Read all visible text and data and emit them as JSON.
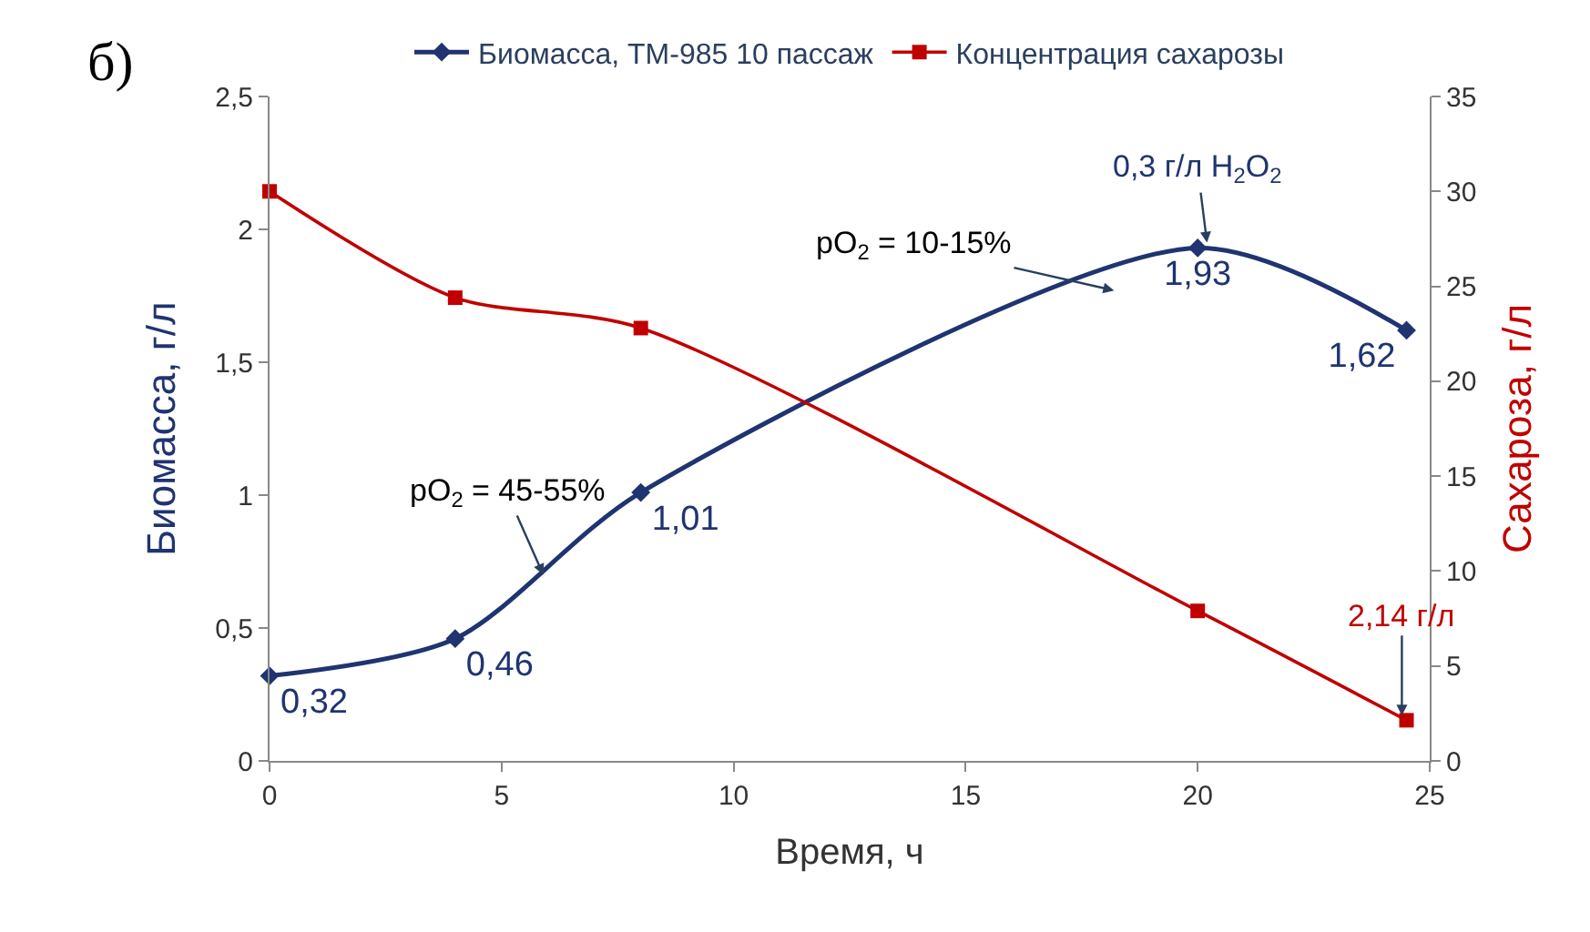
{
  "chart_data": {
    "type": "line",
    "title": "б)",
    "xlabel": "Время, ч",
    "ylabel": "Биомасса, г/л",
    "y2label": "Сахароза, г/л",
    "xlim": [
      0,
      25
    ],
    "xticks": [
      0,
      5,
      10,
      15,
      20,
      25
    ],
    "ylim": [
      0,
      2.5
    ],
    "yticks": [
      0,
      {
        "value": 0.5,
        "label": "0,5"
      },
      1,
      {
        "value": 1.5,
        "label": "1,5"
      },
      2,
      {
        "value": 2.5,
        "label": "2,5"
      }
    ],
    "y2lim": [
      0,
      35
    ],
    "y2ticks": [
      0,
      5,
      10,
      15,
      20,
      25,
      30,
      35
    ],
    "legend": "top",
    "grid": false,
    "series": [
      {
        "name": "Биомасса, ТМ-985 10 пассаж",
        "color": "#1f3470",
        "marker": "diamond",
        "x": [
          0,
          4,
          8,
          20,
          24.5
        ],
        "values": [
          0.32,
          0.46,
          1.01,
          1.93,
          1.62
        ],
        "value_labels": [
          "0,32",
          "0,46",
          "1,01",
          "1,93",
          "1,62"
        ]
      },
      {
        "name": "Концентрация сахарозы",
        "color": "#c00000",
        "marker": "square",
        "axis": "y2",
        "x": [
          0,
          4,
          8,
          20,
          24.5
        ],
        "values": [
          30,
          24.4,
          22.8,
          7.9,
          2.14
        ]
      }
    ],
    "annotations": [
      {
        "text": "pO$_{2}$ = 45-55%",
        "x": 5.9,
        "y": 0.7
      },
      "pO$_{2}$ = 10-15%",
      {
        "text": "0,3 г/л H$_{2}$O$_{2}$",
        "x": 20.2,
        "y": 1.95
      },
      {
        "text": "2,14 г/л",
        "x": 24.4,
        "y": 0.17
      }
    ]
  }
}
